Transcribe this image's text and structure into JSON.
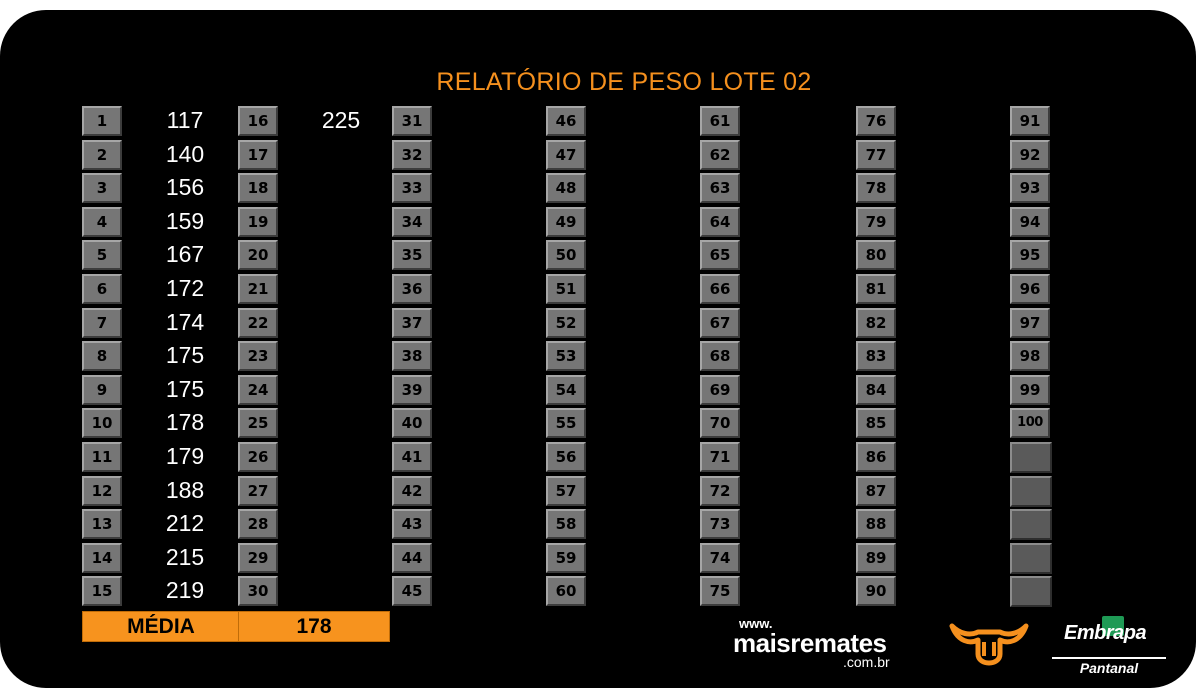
{
  "title": "RELATÓRIO DE PESO LOTE 02",
  "columns": [
    {
      "entries": [
        {
          "num": "1",
          "weight": "117"
        },
        {
          "num": "2",
          "weight": "140"
        },
        {
          "num": "3",
          "weight": "156"
        },
        {
          "num": "4",
          "weight": "159"
        },
        {
          "num": "5",
          "weight": "167"
        },
        {
          "num": "6",
          "weight": "172"
        },
        {
          "num": "7",
          "weight": "174"
        },
        {
          "num": "8",
          "weight": "175"
        },
        {
          "num": "9",
          "weight": "175"
        },
        {
          "num": "10",
          "weight": "178"
        },
        {
          "num": "11",
          "weight": "179"
        },
        {
          "num": "12",
          "weight": "188"
        },
        {
          "num": "13",
          "weight": "212"
        },
        {
          "num": "14",
          "weight": "215"
        },
        {
          "num": "15",
          "weight": "219"
        }
      ]
    },
    {
      "entries": [
        {
          "num": "16",
          "weight": "225"
        },
        {
          "num": "17",
          "weight": ""
        },
        {
          "num": "18",
          "weight": ""
        },
        {
          "num": "19",
          "weight": ""
        },
        {
          "num": "20",
          "weight": ""
        },
        {
          "num": "21",
          "weight": ""
        },
        {
          "num": "22",
          "weight": ""
        },
        {
          "num": "23",
          "weight": ""
        },
        {
          "num": "24",
          "weight": ""
        },
        {
          "num": "25",
          "weight": ""
        },
        {
          "num": "26",
          "weight": ""
        },
        {
          "num": "27",
          "weight": ""
        },
        {
          "num": "28",
          "weight": ""
        },
        {
          "num": "29",
          "weight": ""
        },
        {
          "num": "30",
          "weight": ""
        }
      ]
    },
    {
      "entries": [
        {
          "num": "31"
        },
        {
          "num": "32"
        },
        {
          "num": "33"
        },
        {
          "num": "34"
        },
        {
          "num": "35"
        },
        {
          "num": "36"
        },
        {
          "num": "37"
        },
        {
          "num": "38"
        },
        {
          "num": "39"
        },
        {
          "num": "40"
        },
        {
          "num": "41"
        },
        {
          "num": "42"
        },
        {
          "num": "43"
        },
        {
          "num": "44"
        },
        {
          "num": "45"
        }
      ]
    },
    {
      "entries": [
        {
          "num": "46"
        },
        {
          "num": "47"
        },
        {
          "num": "48"
        },
        {
          "num": "49"
        },
        {
          "num": "50"
        },
        {
          "num": "51"
        },
        {
          "num": "52"
        },
        {
          "num": "53"
        },
        {
          "num": "54"
        },
        {
          "num": "55"
        },
        {
          "num": "56"
        },
        {
          "num": "57"
        },
        {
          "num": "58"
        },
        {
          "num": "59"
        },
        {
          "num": "60"
        }
      ]
    },
    {
      "entries": [
        {
          "num": "61"
        },
        {
          "num": "62"
        },
        {
          "num": "63"
        },
        {
          "num": "64"
        },
        {
          "num": "65"
        },
        {
          "num": "66"
        },
        {
          "num": "67"
        },
        {
          "num": "68"
        },
        {
          "num": "69"
        },
        {
          "num": "70"
        },
        {
          "num": "71"
        },
        {
          "num": "72"
        },
        {
          "num": "73"
        },
        {
          "num": "74"
        },
        {
          "num": "75"
        }
      ]
    },
    {
      "entries": [
        {
          "num": "76"
        },
        {
          "num": "77"
        },
        {
          "num": "78"
        },
        {
          "num": "79"
        },
        {
          "num": "80"
        },
        {
          "num": "81"
        },
        {
          "num": "82"
        },
        {
          "num": "83"
        },
        {
          "num": "84"
        },
        {
          "num": "85"
        },
        {
          "num": "86"
        },
        {
          "num": "87"
        },
        {
          "num": "88"
        },
        {
          "num": "89"
        },
        {
          "num": "90"
        }
      ]
    },
    {
      "entries": [
        {
          "num": "91"
        },
        {
          "num": "92"
        },
        {
          "num": "93"
        },
        {
          "num": "94"
        },
        {
          "num": "95"
        },
        {
          "num": "96"
        },
        {
          "num": "97"
        },
        {
          "num": "98"
        },
        {
          "num": "99"
        },
        {
          "num": "100"
        }
      ],
      "empty_boxes": 5
    }
  ],
  "average": {
    "label": "MÉDIA",
    "value": "178"
  },
  "logos": {
    "maisremates": {
      "www": "www.",
      "name": "maisremates",
      "domain": ".com.br"
    },
    "embrapa": {
      "name": "Embrapa",
      "subtitle": "Pantanal"
    },
    "bull_icon": "bull-head-icon"
  },
  "colors": {
    "background": "#000000",
    "accent": "#f5901e",
    "box": "#767676",
    "text": "#ffffff"
  }
}
